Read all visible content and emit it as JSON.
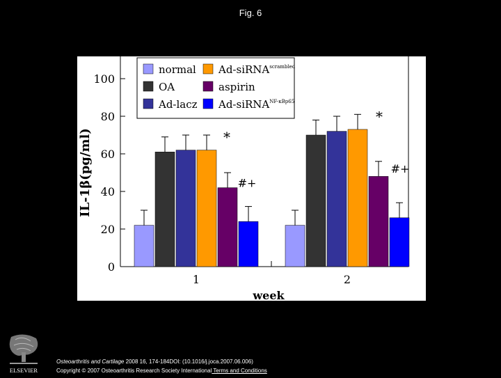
{
  "header": {
    "title": "Fig. 6"
  },
  "footer": {
    "journal": "Osteoarthritis and Cartilage",
    "citation": " 2008 16, 174-184DOI: (10.1016/j.joca.2007.06.006)",
    "copyright": "Copyright © 2007 Osteoarthritis Research Society International",
    "terms_link": " Terms and Conditions"
  },
  "logo": {
    "text": "ELSEVIER",
    "icon": "elsevier-tree-icon"
  },
  "chart_data": {
    "type": "bar",
    "categories": [
      "1",
      "2"
    ],
    "xlabel": "week",
    "ylabel": "IL-1β(pg/ml)",
    "ylim": [
      0,
      100
    ],
    "yticks": [
      "0",
      "20",
      "40",
      "60",
      "80",
      "100"
    ],
    "grid": false,
    "legend_position": "top",
    "series": [
      {
        "name": "normal",
        "color": "#9999ff",
        "values": [
          22,
          22
        ],
        "errors": [
          8,
          8
        ]
      },
      {
        "name": "OA",
        "color": "#333333",
        "values": [
          61,
          70
        ],
        "errors": [
          8,
          8
        ]
      },
      {
        "name": "Ad-lacz",
        "color": "#333399",
        "values": [
          62,
          72
        ],
        "errors": [
          8,
          8
        ]
      },
      {
        "name": "Ad-siRNA",
        "name_sup": "scrambled",
        "color": "#ff9900",
        "values": [
          62,
          73
        ],
        "errors": [
          8,
          8
        ]
      },
      {
        "name": "aspirin",
        "color": "#660066",
        "values": [
          42,
          48
        ],
        "errors": [
          8,
          8
        ]
      },
      {
        "name": "Ad-siRNA",
        "name_sup": "NF-κBp65",
        "color": "#0000ff",
        "values": [
          24,
          26
        ],
        "errors": [
          8,
          8
        ]
      }
    ],
    "annotations": [
      {
        "category": "1",
        "series": "Ad-siRNA scrambled",
        "text": "*"
      },
      {
        "category": "1",
        "series": "aspirin",
        "text": "#+"
      },
      {
        "category": "2",
        "series": "Ad-siRNA scrambled",
        "text": "*"
      },
      {
        "category": "2",
        "series": "aspirin",
        "text": "#+"
      }
    ]
  }
}
